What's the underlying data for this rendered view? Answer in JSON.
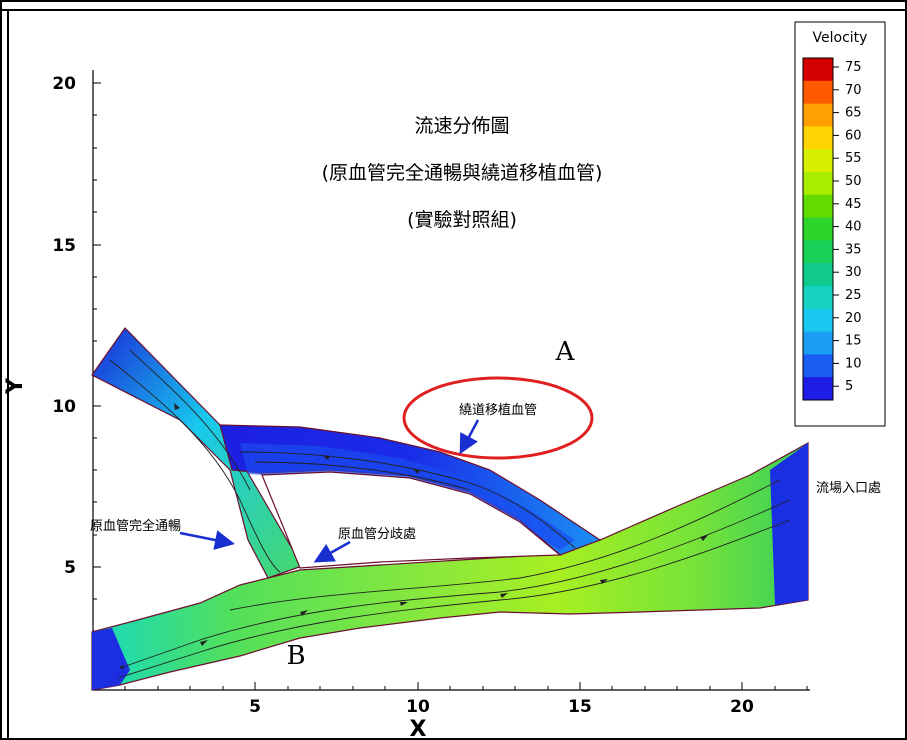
{
  "title_lines": [
    "流速分佈圖",
    "(原血管完全通暢與繞道移植血管)",
    "(實驗對照組)"
  ],
  "axes": {
    "x": {
      "label": "X",
      "range": [
        0,
        22
      ],
      "ticks": [
        5,
        10,
        15,
        20
      ]
    },
    "y": {
      "label": "Y",
      "range": [
        1,
        21
      ],
      "ticks": [
        5,
        10,
        15,
        20
      ]
    }
  },
  "legend": {
    "title": "Velocity",
    "levels": [
      75,
      70,
      65,
      60,
      55,
      50,
      45,
      40,
      35,
      30,
      25,
      20,
      15,
      10,
      5
    ],
    "colors": [
      "#d40000",
      "#ff5a00",
      "#ff9f00",
      "#ffd400",
      "#d8f000",
      "#a8ec00",
      "#62dc00",
      "#2fd42a",
      "#18cf58",
      "#10c98c",
      "#16d2c0",
      "#18c8ef",
      "#199ef2",
      "#1a5df2",
      "#1d1de6"
    ]
  },
  "annotations": {
    "label_a": "A",
    "label_b": "B",
    "bypass_graft": "繞道移植血管",
    "bifurcation": "原血管分歧處",
    "original_vessel_open": "原血管完全通暢",
    "inlet": "流場入口處"
  }
}
